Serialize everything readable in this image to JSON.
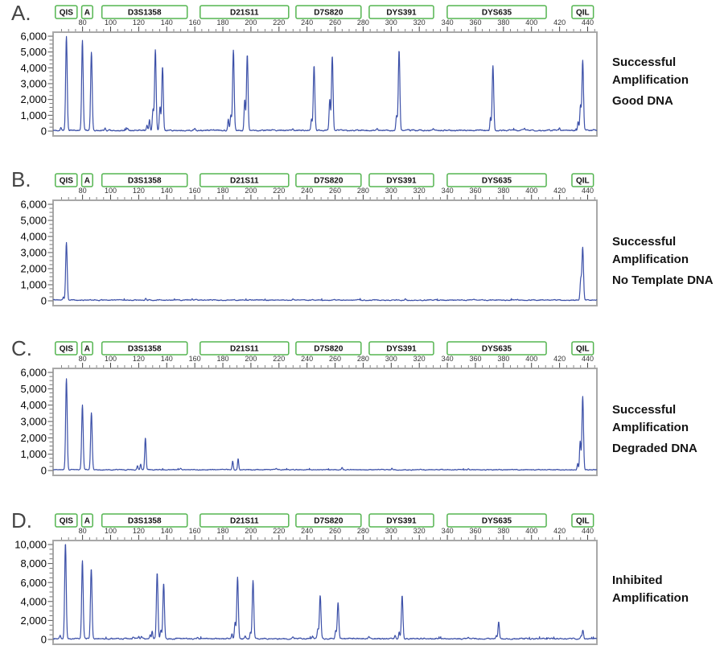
{
  "figure": {
    "panel_count": 4,
    "colors": {
      "trace_blue": "#3c50a8",
      "marker_green": "#55b551",
      "plot_border_gray": "#a8a8a8"
    }
  },
  "x_axis": {
    "tick_labels": [
      80,
      100,
      120,
      140,
      160,
      180,
      200,
      220,
      240,
      260,
      280,
      300,
      320,
      340,
      360,
      380,
      400,
      420,
      440
    ],
    "minor_step": 5,
    "range": [
      59,
      446.6
    ]
  },
  "markers": [
    {
      "label": "QIS",
      "range": [
        60.6,
        76.1
      ]
    },
    {
      "label": "A",
      "range": [
        79.4,
        87.2
      ]
    },
    {
      "label": "D3S1358",
      "range": [
        93.8,
        154.6
      ]
    },
    {
      "label": "D21S11",
      "range": [
        163.8,
        226.9
      ]
    },
    {
      "label": "D7S820",
      "range": [
        232.1,
        278.5
      ]
    },
    {
      "label": "DYS391",
      "range": [
        284.3,
        330.2
      ]
    },
    {
      "label": "DYS635",
      "range": [
        339.9,
        410.5
      ]
    },
    {
      "label": "QIL",
      "range": [
        428.8,
        444.1
      ]
    }
  ],
  "chart_data": [
    {
      "type": "line",
      "panel_label": "A.",
      "annotation": [
        "Successful",
        "Amplification",
        "Good DNA"
      ],
      "ylim": [
        0,
        6000
      ],
      "y_tick_labels": [
        "6,000",
        "5,000",
        "4,000",
        "3,000",
        "2,000",
        "1,000",
        "0"
      ],
      "y_minor_step": 250,
      "noise_amplitude": 130,
      "series": [
        {
          "name": "trace",
          "color": "#3c50a8",
          "peaks": [
            [
              64.5,
              200
            ],
            [
              68.5,
              5950
            ],
            [
              79.9,
              5650
            ],
            [
              86.3,
              4980
            ],
            [
              96,
              160
            ],
            [
              112,
              120
            ],
            [
              125.9,
              300
            ],
            [
              127.7,
              680
            ],
            [
              130.2,
              1350
            ],
            [
              131.9,
              5080
            ],
            [
              135.2,
              1500
            ],
            [
              137.0,
              4030
            ],
            [
              160,
              90
            ],
            [
              183.9,
              700
            ],
            [
              185.7,
              950
            ],
            [
              187.5,
              5060
            ],
            [
              195.6,
              1900
            ],
            [
              197.4,
              4790
            ],
            [
              230,
              130
            ],
            [
              243.2,
              700
            ],
            [
              245.0,
              4050
            ],
            [
              256.2,
              1980
            ],
            [
              258.0,
              4740
            ],
            [
              290,
              100
            ],
            [
              303.8,
              950
            ],
            [
              305.6,
              5080
            ],
            [
              330,
              90
            ],
            [
              370.7,
              800
            ],
            [
              372.5,
              4120
            ],
            [
              395,
              110
            ],
            [
              420,
              130
            ],
            [
              433.2,
              550
            ],
            [
              434.9,
              1500
            ],
            [
              436.5,
              4390
            ]
          ]
        }
      ]
    },
    {
      "type": "line",
      "panel_label": "B.",
      "annotation": [
        "Successful",
        "Amplification",
        "No Template DNA"
      ],
      "ylim": [
        0,
        6000
      ],
      "y_tick_labels": [
        "6,000",
        "5,000",
        "4,000",
        "3,000",
        "2,000",
        "1,000",
        "0"
      ],
      "y_minor_step": 250,
      "noise_amplitude": 90,
      "series": [
        {
          "name": "trace",
          "color": "#3c50a8",
          "peaks": [
            [
              66.3,
              180
            ],
            [
              68.5,
              3550
            ],
            [
              125,
              110
            ],
            [
              158,
              70
            ],
            [
              230,
              60
            ],
            [
              310,
              70
            ],
            [
              390,
              60
            ],
            [
              435.1,
              1250
            ],
            [
              436.5,
              3260
            ]
          ]
        }
      ]
    },
    {
      "type": "line",
      "panel_label": "C.",
      "annotation": [
        "Successful",
        "Amplification",
        "Degraded DNA"
      ],
      "ylim": [
        0,
        6000
      ],
      "y_tick_labels": [
        "6,000",
        "5,000",
        "4,000",
        "3,000",
        "2,000",
        "1,000",
        "0"
      ],
      "y_minor_step": 250,
      "noise_amplitude": 80,
      "series": [
        {
          "name": "trace",
          "color": "#3c50a8",
          "peaks": [
            [
              68.5,
              5560
            ],
            [
              79.9,
              3950
            ],
            [
              86.3,
              3480
            ],
            [
              119.1,
              250
            ],
            [
              121.4,
              330
            ],
            [
              124.8,
              1950
            ],
            [
              150,
              80
            ],
            [
              187.0,
              550
            ],
            [
              190.9,
              680
            ],
            [
              218,
              70
            ],
            [
              265,
              120
            ],
            [
              300.5,
              110
            ],
            [
              355,
              60
            ],
            [
              432.9,
              400
            ],
            [
              434.7,
              1750
            ],
            [
              436.5,
              4480
            ]
          ]
        }
      ]
    },
    {
      "type": "line",
      "panel_label": "D.",
      "annotation": [
        "Inhibited",
        "Amplification"
      ],
      "ylim": [
        0,
        10000
      ],
      "y_tick_labels": [
        "10,000",
        "8,000",
        "6,000",
        "4,000",
        "2,000",
        "0"
      ],
      "y_minor_step": 500,
      "noise_amplitude": 200,
      "series": [
        {
          "name": "trace",
          "color": "#3c50a8",
          "peaks": [
            [
              64,
              300
            ],
            [
              67.8,
              10100
            ],
            [
              79.9,
              8200
            ],
            [
              86.2,
              7400
            ],
            [
              116,
              150
            ],
            [
              120,
              220
            ],
            [
              122,
              260
            ],
            [
              128.2,
              400
            ],
            [
              129.6,
              800
            ],
            [
              133.2,
              6950
            ],
            [
              135.8,
              900
            ],
            [
              137.8,
              5800
            ],
            [
              162,
              100
            ],
            [
              186.5,
              500
            ],
            [
              188.7,
              1750
            ],
            [
              190.5,
              6500
            ],
            [
              196,
              300
            ],
            [
              199.6,
              650
            ],
            [
              201.5,
              6150
            ],
            [
              230,
              150
            ],
            [
              244,
              250
            ],
            [
              247.7,
              1000
            ],
            [
              249.4,
              4550
            ],
            [
              260.4,
              800
            ],
            [
              262.1,
              3800
            ],
            [
              284,
              200
            ],
            [
              302.8,
              300
            ],
            [
              305.7,
              700
            ],
            [
              307.8,
              4550
            ],
            [
              355,
              120
            ],
            [
              374.9,
              300
            ],
            [
              376.6,
              1750
            ],
            [
              412,
              100
            ],
            [
              435.2,
              250
            ],
            [
              436.6,
              880
            ]
          ]
        }
      ]
    }
  ]
}
